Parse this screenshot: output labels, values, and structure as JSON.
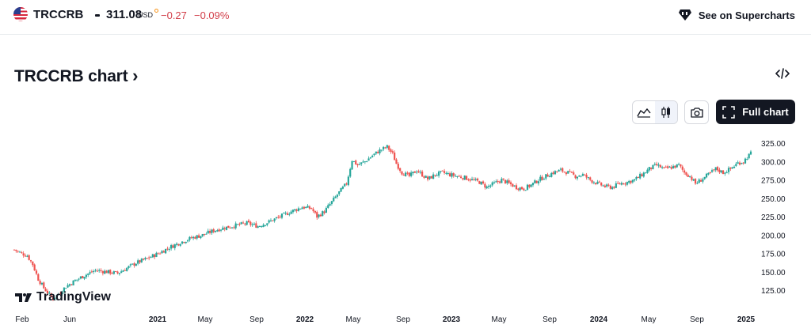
{
  "ticker": {
    "symbol": "TRCCRB",
    "price": "311.08",
    "currency": "USD",
    "change": "−0.27",
    "change_percent": "−0.09%",
    "flag_icon": "us-flag-icon"
  },
  "header": {
    "supercharts_link": "See on Supercharts"
  },
  "title": {
    "text": "TRCCRB chart",
    "chevron": "›"
  },
  "toolbar": {
    "area_icon": "area-chart-icon",
    "candles_icon": "candlestick-icon",
    "screenshot_icon": "camera-icon",
    "full_chart_label": "Full chart",
    "embed_icon": "code-icon"
  },
  "watermark": "TradingView",
  "colors": {
    "up": "#26a69a",
    "down": "#ef5350",
    "dark": "#131722"
  },
  "chart_data": {
    "type": "candlestick",
    "y_ticks": [
      "325.00",
      "300.00",
      "275.00",
      "250.00",
      "225.00",
      "200.00",
      "175.00",
      "150.00",
      "125.00"
    ],
    "x_ticks": [
      {
        "label": "Feb",
        "bold": false
      },
      {
        "label": "Jun",
        "bold": false
      },
      {
        "label": "2021",
        "bold": true
      },
      {
        "label": "May",
        "bold": false
      },
      {
        "label": "Sep",
        "bold": false
      },
      {
        "label": "2022",
        "bold": true
      },
      {
        "label": "May",
        "bold": false
      },
      {
        "label": "Sep",
        "bold": false
      },
      {
        "label": "2023",
        "bold": true
      },
      {
        "label": "May",
        "bold": false
      },
      {
        "label": "Sep",
        "bold": false
      },
      {
        "label": "2024",
        "bold": true
      },
      {
        "label": "May",
        "bold": false
      },
      {
        "label": "Sep",
        "bold": false
      },
      {
        "label": "2025",
        "bold": true
      }
    ],
    "ylim": [
      110,
      335
    ],
    "close_path": [
      [
        0,
        180
      ],
      [
        4,
        175
      ],
      [
        7,
        172
      ],
      [
        10,
        160
      ],
      [
        13,
        140
      ],
      [
        16,
        128
      ],
      [
        19,
        119
      ],
      [
        21,
        114
      ],
      [
        24,
        120
      ],
      [
        28,
        130
      ],
      [
        33,
        138
      ],
      [
        38,
        145
      ],
      [
        44,
        152
      ],
      [
        50,
        150
      ],
      [
        56,
        148
      ],
      [
        61,
        155
      ],
      [
        66,
        162
      ],
      [
        72,
        168
      ],
      [
        78,
        175
      ],
      [
        84,
        183
      ],
      [
        90,
        190
      ],
      [
        96,
        196
      ],
      [
        102,
        200
      ],
      [
        108,
        206
      ],
      [
        114,
        210
      ],
      [
        120,
        213
      ],
      [
        126,
        216
      ],
      [
        132,
        212
      ],
      [
        138,
        218
      ],
      [
        144,
        225
      ],
      [
        150,
        232
      ],
      [
        156,
        238
      ],
      [
        161,
        236
      ],
      [
        164,
        225
      ],
      [
        168,
        232
      ],
      [
        172,
        245
      ],
      [
        176,
        258
      ],
      [
        180,
        270
      ],
      [
        183,
        302
      ],
      [
        186,
        295
      ],
      [
        190,
        300
      ],
      [
        194,
        308
      ],
      [
        198,
        315
      ],
      [
        202,
        320
      ],
      [
        205,
        310
      ],
      [
        207,
        297
      ],
      [
        210,
        285
      ],
      [
        214,
        280
      ],
      [
        218,
        288
      ],
      [
        221,
        282
      ],
      [
        224,
        276
      ],
      [
        228,
        282
      ],
      [
        232,
        285
      ],
      [
        236,
        282
      ],
      [
        240,
        280
      ],
      [
        244,
        278
      ],
      [
        248,
        275
      ],
      [
        252,
        272
      ],
      [
        256,
        265
      ],
      [
        260,
        270
      ],
      [
        264,
        275
      ],
      [
        268,
        270
      ],
      [
        272,
        265
      ],
      [
        276,
        263
      ],
      [
        280,
        268
      ],
      [
        284,
        275
      ],
      [
        288,
        280
      ],
      [
        292,
        285
      ],
      [
        296,
        288
      ],
      [
        300,
        285
      ],
      [
        304,
        280
      ],
      [
        308,
        282
      ],
      [
        312,
        275
      ],
      [
        316,
        270
      ],
      [
        320,
        266
      ],
      [
        324,
        265
      ],
      [
        328,
        270
      ],
      [
        332,
        272
      ],
      [
        336,
        275
      ],
      [
        340,
        282
      ],
      [
        344,
        290
      ],
      [
        348,
        295
      ],
      [
        352,
        290
      ],
      [
        356,
        292
      ],
      [
        360,
        295
      ],
      [
        363,
        285
      ],
      [
        366,
        280
      ],
      [
        369,
        270
      ],
      [
        372,
        275
      ],
      [
        376,
        282
      ],
      [
        380,
        290
      ],
      [
        384,
        285
      ],
      [
        388,
        290
      ],
      [
        392,
        298
      ],
      [
        395,
        300
      ],
      [
        397,
        306
      ],
      [
        399,
        311
      ]
    ]
  }
}
